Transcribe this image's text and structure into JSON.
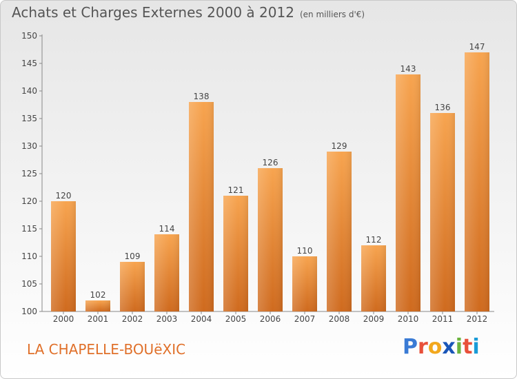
{
  "header": {
    "title": "Achats et Charges Externes 2000 à 2012",
    "subtitle": "(en milliers d'€)"
  },
  "commune": "LA CHAPELLE-BOUëXIC",
  "logo": {
    "text": "Proxiti",
    "letters": [
      {
        "char": "P",
        "color": "#3a7bd5"
      },
      {
        "char": "r",
        "color": "#e8503a"
      },
      {
        "char": "o",
        "color": "#f2a81d"
      },
      {
        "char": "x",
        "color": "#1a56b8"
      },
      {
        "char": "i",
        "color": "#6cb33e"
      },
      {
        "char": "t",
        "color": "#e8503a"
      },
      {
        "char": "i",
        "color": "#1a9bd7"
      }
    ]
  },
  "colors": {
    "bar_top": "#f7a44f",
    "bar_bottom": "#cf6a1e",
    "bar_side": "#e88a38",
    "axis": "#888888",
    "text": "#444444",
    "commune": "#e0702a"
  },
  "chart_data": {
    "type": "bar",
    "title": "Achats et Charges Externes 2000 à 2012",
    "subtitle": "(en milliers d'€)",
    "categories": [
      "2000",
      "2001",
      "2002",
      "2003",
      "2004",
      "2005",
      "2006",
      "2007",
      "2008",
      "2009",
      "2010",
      "2011",
      "2012"
    ],
    "values": [
      120,
      102,
      109,
      114,
      138,
      121,
      126,
      110,
      129,
      112,
      143,
      136,
      147
    ],
    "ylim": [
      100,
      150
    ],
    "yticks": [
      100,
      105,
      110,
      115,
      120,
      125,
      130,
      135,
      140,
      145,
      150
    ],
    "grid": false,
    "data_labels": true
  }
}
